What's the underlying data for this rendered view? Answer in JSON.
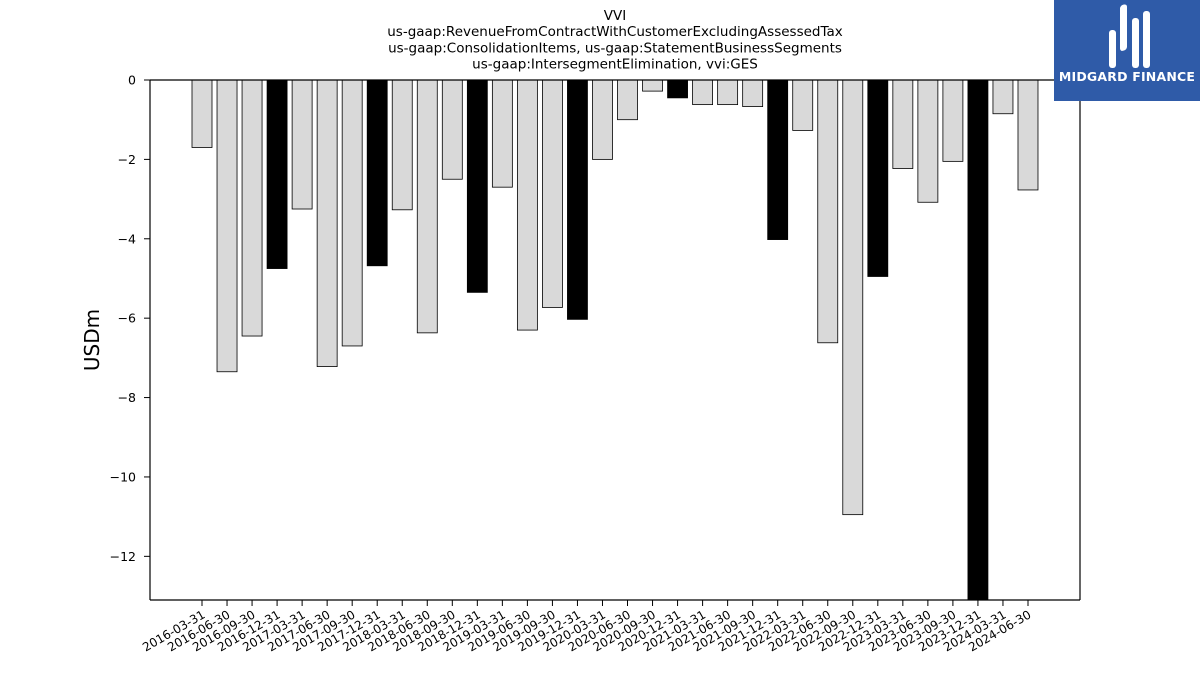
{
  "chart_data": {
    "type": "bar",
    "title": [
      "VVI",
      "us-gaap:RevenueFromContractWithCustomerExcludingAssessedTax",
      "us-gaap:ConsolidationItems, us-gaap:StatementBusinessSegments",
      "us-gaap:IntersegmentElimination, vvi:GES"
    ],
    "xlabel": "",
    "ylabel": "USDm",
    "ylim": [
      -13.1,
      0
    ],
    "yticks": [
      0,
      -2,
      -4,
      -6,
      -8,
      -10,
      -12
    ],
    "ytick_labels": [
      "0",
      "−2",
      "−4",
      "−6",
      "−8",
      "−10",
      "−12"
    ],
    "categories": [
      "2016-03-31",
      "2016-06-30",
      "2016-09-30",
      "2016-12-31",
      "2017-03-31",
      "2017-06-30",
      "2017-09-30",
      "2017-12-31",
      "2018-03-31",
      "2018-06-30",
      "2018-09-30",
      "2018-12-31",
      "2019-03-31",
      "2019-06-30",
      "2019-09-30",
      "2019-12-31",
      "2020-03-31",
      "2020-06-30",
      "2020-09-30",
      "2020-12-31",
      "2021-03-31",
      "2021-06-30",
      "2021-09-30",
      "2021-12-31",
      "2022-03-31",
      "2022-06-30",
      "2022-09-30",
      "2022-12-31",
      "2023-03-31",
      "2023-06-30",
      "2023-09-30",
      "2023-12-31",
      "2024-03-31",
      "2024-06-30"
    ],
    "values": [
      -1.7,
      -7.35,
      -6.45,
      -4.75,
      -3.25,
      -7.22,
      -6.7,
      -4.68,
      -3.27,
      -6.37,
      -2.5,
      -5.35,
      -2.7,
      -6.3,
      -5.73,
      -6.03,
      -2.0,
      -1.0,
      -0.28,
      -0.45,
      -0.62,
      -0.62,
      -0.67,
      -4.02,
      -1.27,
      -6.62,
      -10.95,
      -4.95,
      -2.23,
      -3.08,
      -2.05,
      -13.1,
      -0.85,
      -2.77
    ],
    "highlight": [
      false,
      false,
      false,
      true,
      false,
      false,
      false,
      true,
      false,
      false,
      false,
      true,
      false,
      false,
      false,
      true,
      false,
      false,
      false,
      true,
      false,
      false,
      false,
      true,
      false,
      false,
      false,
      true,
      false,
      false,
      false,
      true,
      false,
      false
    ],
    "colors": {
      "bar": "#d9d9d9",
      "highlight_bar": "#000000",
      "edge": "#000000"
    },
    "grid": false,
    "legend": "none"
  },
  "logo": {
    "text": "MIDGARD FINANCE",
    "bg": "#2f5ba8"
  }
}
